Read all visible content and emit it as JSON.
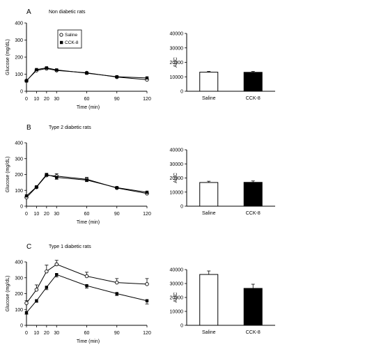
{
  "chart_data": [
    {
      "panel": "A",
      "title": "Non diabetic rats",
      "type": "line",
      "xlabel": "Time (min)",
      "ylabel": "Glucose (mg/dL)",
      "x": [
        0,
        10,
        20,
        30,
        60,
        90,
        120
      ],
      "xlim": [
        0,
        120
      ],
      "ylim": [
        0,
        400
      ],
      "yticks": [
        0,
        100,
        200,
        300,
        400
      ],
      "legend": {
        "position": "top-left",
        "entries": [
          "Saline",
          "CCK-8"
        ]
      },
      "series": [
        {
          "name": "Saline",
          "marker": "open-circle",
          "values": [
            62,
            122,
            133,
            122,
            108,
            83,
            68
          ],
          "errors": [
            5,
            6,
            6,
            6,
            5,
            5,
            4
          ]
        },
        {
          "name": "CCK-8",
          "marker": "filled-square",
          "values": [
            60,
            127,
            137,
            125,
            106,
            85,
            78
          ],
          "errors": [
            5,
            7,
            6,
            6,
            5,
            5,
            5
          ]
        }
      ]
    },
    {
      "panel": "A",
      "type": "bar",
      "ylabel": "AUC",
      "categories": [
        "Saline",
        "CCK-8"
      ],
      "values": [
        13200,
        13100
      ],
      "errors": [
        500,
        600
      ],
      "fills": [
        "#ffffff",
        "#000000"
      ],
      "ylim": [
        0,
        40000
      ],
      "yticks": [
        0,
        10000,
        20000,
        30000,
        40000
      ]
    },
    {
      "panel": "B",
      "title": "Type 2 diabetic rats",
      "type": "line",
      "xlabel": "Time (min)",
      "ylabel": "Glucose (mg/dL)",
      "x": [
        0,
        10,
        20,
        30,
        60,
        90,
        120
      ],
      "xlim": [
        0,
        120
      ],
      "ylim": [
        0,
        400
      ],
      "yticks": [
        0,
        100,
        200,
        300,
        400
      ],
      "series": [
        {
          "name": "Saline",
          "marker": "open-circle",
          "values": [
            55,
            120,
            195,
            190,
            170,
            115,
            80
          ],
          "errors": [
            6,
            8,
            12,
            15,
            12,
            7,
            6
          ]
        },
        {
          "name": "CCK-8",
          "marker": "filled-square",
          "values": [
            65,
            122,
            200,
            182,
            165,
            117,
            88
          ],
          "errors": [
            6,
            8,
            10,
            12,
            10,
            7,
            6
          ]
        }
      ]
    },
    {
      "panel": "B",
      "type": "bar",
      "ylabel": "AUC",
      "categories": [
        "Saline",
        "CCK-8"
      ],
      "values": [
        16800,
        16900
      ],
      "errors": [
        900,
        1000
      ],
      "fills": [
        "#ffffff",
        "#000000"
      ],
      "ylim": [
        0,
        40000
      ],
      "yticks": [
        0,
        10000,
        20000,
        30000,
        40000
      ]
    },
    {
      "panel": "C",
      "title": "Type 1 diabetic rats",
      "type": "line",
      "xlabel": "Time (min)",
      "ylabel": "Glucose (mg/dL)",
      "x": [
        0,
        10,
        20,
        30,
        60,
        90,
        120
      ],
      "xlim": [
        0,
        120
      ],
      "ylim": [
        0,
        400
      ],
      "yticks": [
        0,
        100,
        200,
        300,
        400
      ],
      "series": [
        {
          "name": "Saline",
          "marker": "open-circle",
          "values": [
            140,
            225,
            340,
            385,
            310,
            270,
            260
          ],
          "errors": [
            15,
            30,
            40,
            25,
            25,
            25,
            35
          ]
        },
        {
          "name": "CCK-8",
          "marker": "filled-square",
          "values": [
            80,
            155,
            240,
            320,
            250,
            200,
            155
          ],
          "errors": [
            10,
            10,
            15,
            15,
            15,
            12,
            20
          ]
        }
      ]
    },
    {
      "panel": "C",
      "type": "bar",
      "ylabel": "AUC",
      "categories": [
        "Saline",
        "CCK-8"
      ],
      "values": [
        36500,
        26500
      ],
      "errors": [
        2500,
        3000
      ],
      "fills": [
        "#ffffff",
        "#000000"
      ],
      "ylim": [
        0,
        40000
      ],
      "yticks": [
        0,
        10000,
        20000,
        30000,
        40000
      ]
    }
  ]
}
